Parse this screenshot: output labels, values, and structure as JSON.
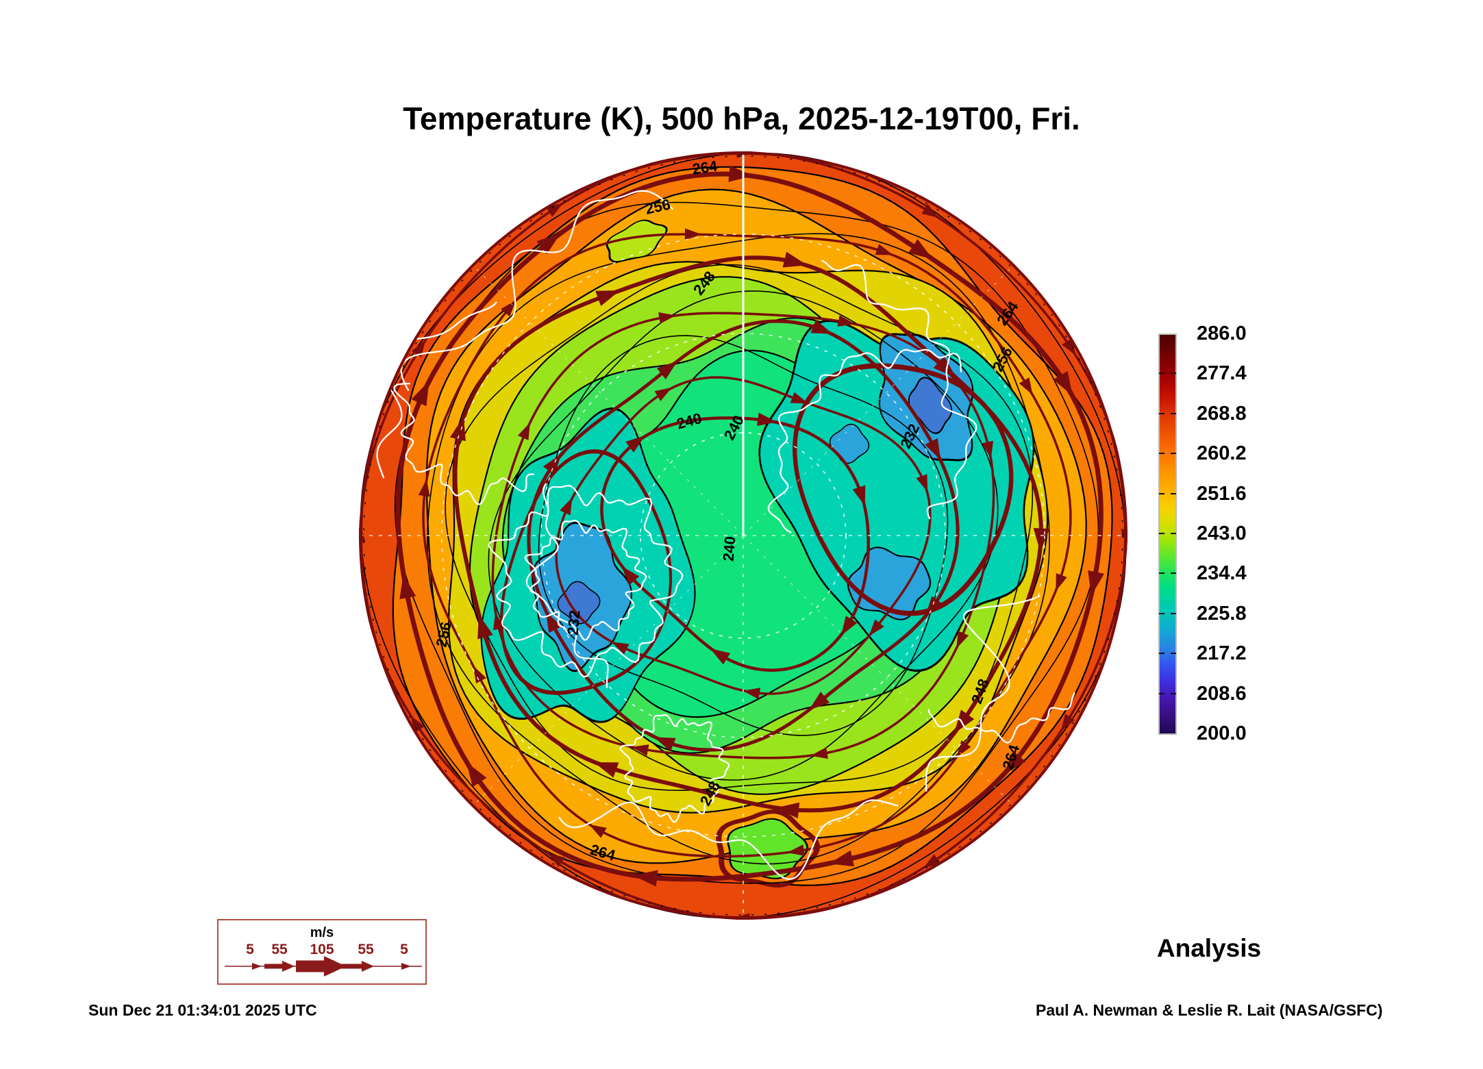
{
  "header": {
    "title": "Temperature (K), 500 hPa, 2025-12-19T00, Fri."
  },
  "chart_data": {
    "type": "heatmap",
    "title": "Temperature (K), 500 hPa, 2025-12-19T00, Fri.",
    "variable": "Temperature",
    "units": "K",
    "level": "500 hPa",
    "valid_time": "2025-12-19T00",
    "weekday": "Fri.",
    "projection": "Northern Hemisphere polar stereographic",
    "mode_label": "Analysis",
    "colorbar": {
      "orientation": "vertical",
      "position": "right",
      "range": [
        200.0,
        286.0
      ],
      "tick_interval": 8.6,
      "ticks": [
        "286.0",
        "277.4",
        "268.8",
        "260.2",
        "251.6",
        "243.0",
        "234.4",
        "225.8",
        "217.2",
        "208.6",
        "200.0"
      ],
      "gradient_top_to_bottom": [
        [
          "0.00",
          "#4e0000"
        ],
        [
          "0.05",
          "#750000"
        ],
        [
          "0.10",
          "#9c0000"
        ],
        [
          "0.15",
          "#c31000"
        ],
        [
          "0.21",
          "#e23c00"
        ],
        [
          "0.27",
          "#f56300"
        ],
        [
          "0.33",
          "#fd8a00"
        ],
        [
          "0.39",
          "#feb200"
        ],
        [
          "0.44",
          "#f6d400"
        ],
        [
          "0.48",
          "#cfe000"
        ],
        [
          "0.52",
          "#96e60c"
        ],
        [
          "0.56",
          "#55e734"
        ],
        [
          "0.60",
          "#1ce45f"
        ],
        [
          "0.64",
          "#00da8e"
        ],
        [
          "0.69",
          "#00c9b4"
        ],
        [
          "0.74",
          "#13aad2"
        ],
        [
          "0.79",
          "#2b7fe4"
        ],
        [
          "0.83",
          "#3353ee"
        ],
        [
          "0.87",
          "#3c2ede"
        ],
        [
          "0.91",
          "#4617b4"
        ],
        [
          "0.95",
          "#3c0f86"
        ],
        [
          "1.00",
          "#1c0a50"
        ]
      ]
    },
    "contour_interval_labels": [
      "232",
      "240",
      "248",
      "256",
      "264"
    ],
    "contour_label_instances": [
      "264",
      "256",
      "248",
      "240",
      "240",
      "240",
      "232",
      "256",
      "264",
      "248",
      "264",
      "248",
      "232",
      "264",
      "256"
    ],
    "field_bands_estimate": [
      {
        "temp_k": 263,
        "color": "#e9480b"
      },
      {
        "temp_k": 258,
        "color": "#f97c04"
      },
      {
        "temp_k": 254,
        "color": "#fcaa02"
      },
      {
        "temp_k": 249,
        "color": "#e2d304"
      },
      {
        "temp_k": 245,
        "color": "#9ae41e"
      },
      {
        "temp_k": 240,
        "color": "#3ee35a"
      },
      {
        "temp_k": 236,
        "color": "#12e27c"
      },
      {
        "temp_k": 230,
        "color": "#00d2b2"
      },
      {
        "temp_k": 225,
        "color": "#2ba4dc"
      },
      {
        "temp_k": 220,
        "color": "#4079d4"
      }
    ],
    "overlays": {
      "temperature_contours_color": "#000000",
      "streamlines_color": "#7a0d0d",
      "coastlines_color": "#ffffff",
      "graticule_color": "#ffffff"
    },
    "wind_scale": {
      "units_label": "m/s",
      "tick_labels": [
        "5",
        "55",
        "105",
        "55",
        "5"
      ],
      "accent_color": "#8b1a1a"
    }
  },
  "footer": {
    "timestamp": "Sun Dec 21 01:34:01 2025 UTC",
    "credit": "Paul A. Newman & Leslie R. Lait (NASA/GSFC)"
  }
}
